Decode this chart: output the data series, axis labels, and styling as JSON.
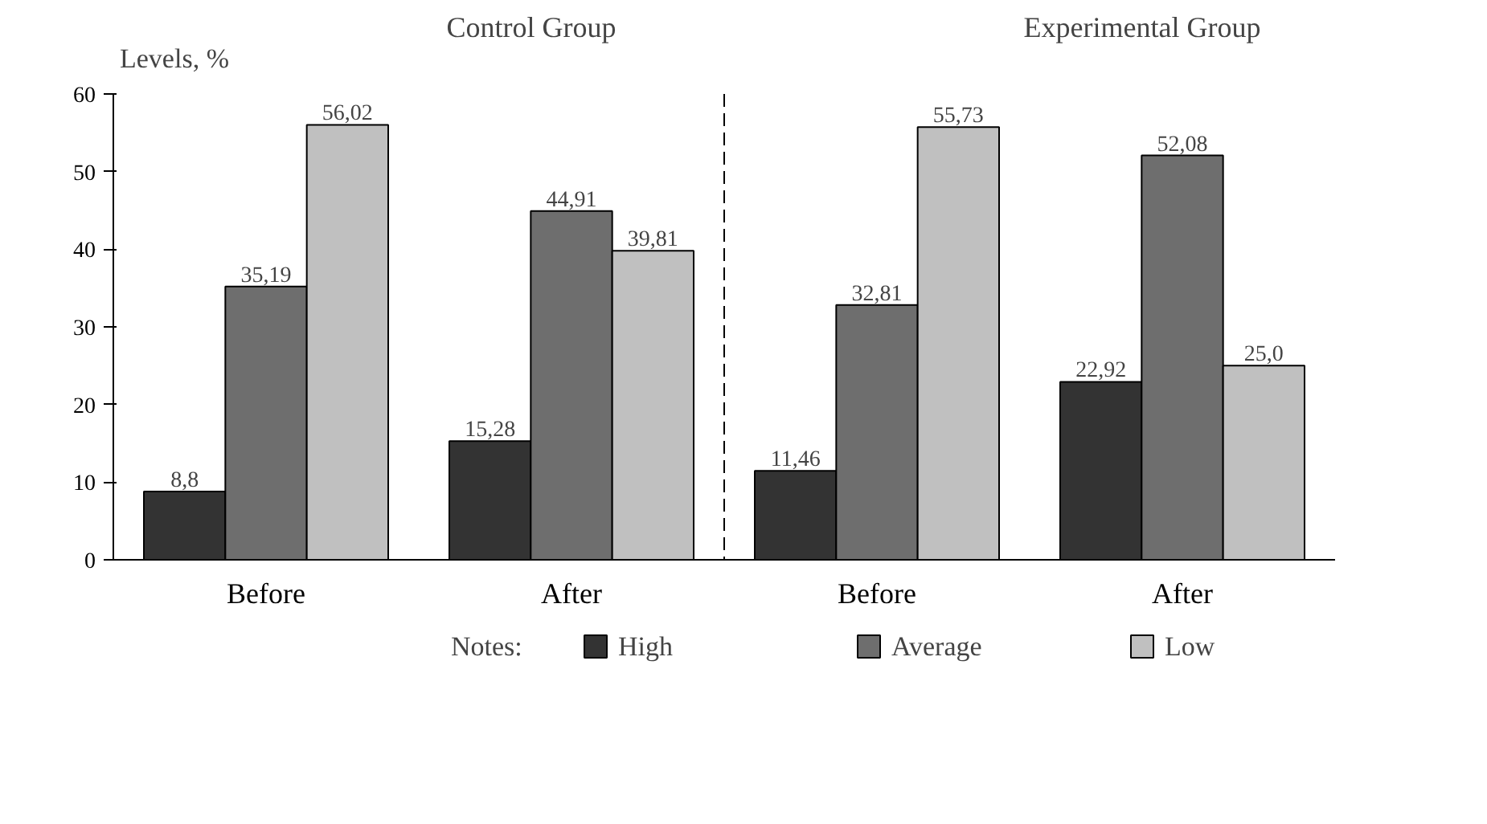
{
  "chart_data": {
    "type": "bar",
    "ylabel": "Levels, %",
    "legend_title": "Notes:",
    "categories": [
      "Before",
      "After",
      "Before",
      "After"
    ],
    "series": [
      {
        "name": "High",
        "color": "#333333",
        "values": [
          8.8,
          15.28,
          11.46,
          22.92
        ],
        "value_labels": [
          "8,8",
          "15,28",
          "11,46",
          "22,92"
        ]
      },
      {
        "name": "Average",
        "color": "#6e6e6e",
        "values": [
          35.19,
          44.91,
          32.81,
          52.08
        ],
        "value_labels": [
          "35,19",
          "44,91",
          "32,81",
          "52,08"
        ]
      },
      {
        "name": "Low",
        "color": "#c0c0c0",
        "values": [
          56.02,
          39.81,
          55.73,
          25.0
        ],
        "value_labels": [
          "56,02",
          "39,81",
          "55,73",
          "25,0"
        ]
      }
    ],
    "annotations": [
      "Control Group",
      "Experimental Group"
    ],
    "ylim": [
      0,
      60
    ],
    "yticks": [
      0,
      10,
      20,
      30,
      40,
      50,
      60
    ],
    "grid": false,
    "legend": "bottom"
  }
}
